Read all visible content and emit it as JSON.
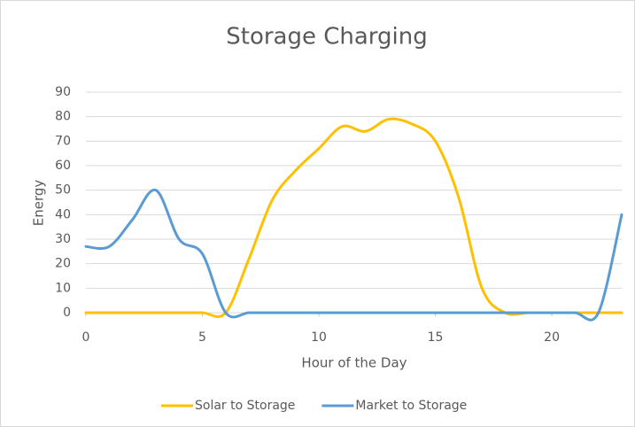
{
  "chart_data": {
    "type": "line",
    "title": "Storage Charging",
    "x_label": "Hour of the Day",
    "y_label": "Energy",
    "x": [
      0,
      1,
      2,
      3,
      4,
      5,
      6,
      7,
      8,
      9,
      10,
      11,
      12,
      13,
      14,
      15,
      16,
      17,
      18,
      19,
      20,
      21,
      22,
      23
    ],
    "series": [
      {
        "name": "Solar to Storage",
        "color": "#ffc000",
        "values": [
          0,
          0,
          0,
          0,
          0,
          0,
          0,
          22,
          46,
          58,
          67,
          76,
          74,
          79,
          77,
          70,
          47,
          10,
          0,
          0,
          0,
          0,
          0,
          0
        ]
      },
      {
        "name": "Market to Storage",
        "color": "#5b9bd5",
        "values": [
          27,
          27,
          38,
          50,
          30,
          24,
          0,
          0,
          0,
          0,
          0,
          0,
          0,
          0,
          0,
          0,
          0,
          0,
          0,
          0,
          0,
          0,
          0,
          40
        ]
      }
    ],
    "xlim": [
      0,
      23
    ],
    "xticks": [
      0,
      5,
      10,
      15,
      20
    ],
    "ylim": [
      0,
      90
    ],
    "yticks": [
      0,
      10,
      20,
      30,
      40,
      50,
      60,
      70,
      80,
      90
    ],
    "grid": true,
    "smooth": true,
    "legend": "bottom"
  }
}
